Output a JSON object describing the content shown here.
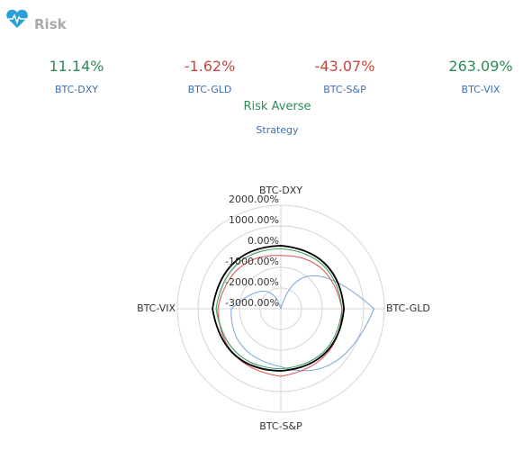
{
  "header": {
    "title": "Risk"
  },
  "metrics": [
    {
      "value": "11.14%",
      "label": "BTC-DXY",
      "color": "#2e8b57"
    },
    {
      "value": "-1.62%",
      "label": "BTC-GLD",
      "color": "#c9453c"
    },
    {
      "value": "-43.07%",
      "label": "BTC-S&P",
      "color": "#c9453c"
    },
    {
      "value": "263.09%",
      "label": "BTC-VIX",
      "color": "#2e8b57"
    }
  ],
  "strategy": {
    "value": "Risk Averse",
    "label": "Strategy",
    "color": "#2e8b57"
  },
  "chart_data": {
    "type": "radar",
    "categories": [
      "BTC-DXY",
      "BTC-GLD",
      "BTC-S&P",
      "BTC-VIX"
    ],
    "rlim": [
      -3000,
      2000
    ],
    "rticks": [
      {
        "value": 2000,
        "label": "2000.00%"
      },
      {
        "value": 1000,
        "label": "1000.00%"
      },
      {
        "value": 0,
        "label": "0.00%"
      },
      {
        "value": -1000,
        "label": "-1000.00%"
      },
      {
        "value": -2000,
        "label": "-2000.00%"
      },
      {
        "value": -3000,
        "label": "-3000.00%"
      }
    ],
    "grid": true,
    "series": [
      {
        "color": "#7aa6db",
        "values": [
          -3000,
          1500,
          -200,
          -600
        ]
      },
      {
        "color": "#d9534f",
        "values": [
          -430,
          -50,
          260,
          50
        ]
      },
      {
        "color": "#3a9a5a",
        "values": [
          -100,
          -50,
          -100,
          130
        ]
      },
      {
        "color": "#000000",
        "values": [
          50,
          50,
          0,
          300
        ]
      }
    ]
  }
}
